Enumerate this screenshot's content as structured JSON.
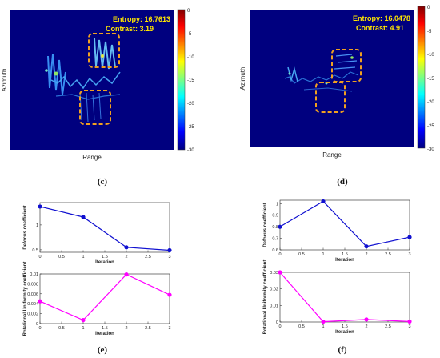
{
  "captions": [
    "(c)",
    "(d)",
    "(e)",
    "(f)"
  ],
  "colors": {
    "sar_bg": "#00007f",
    "box": "#f0a020",
    "defocus_line": "#1010d0",
    "rot_line": "#ff00ff"
  },
  "chart_data": [
    {
      "type": "heatmap",
      "caption": "(c)",
      "xlabel": "Range",
      "ylabel": "Azimuth",
      "entropy_label": "Entropy: 16.7613",
      "contrast_label": "Contrast: 3.19",
      "colorbar": {
        "ticks": [
          "0",
          "-5",
          "-10",
          "-15",
          "-20",
          "-25",
          "-30"
        ],
        "range": [
          -30,
          0
        ]
      }
    },
    {
      "type": "heatmap",
      "caption": "(d)",
      "xlabel": "Range",
      "ylabel": "Azimuth",
      "entropy_label": "Entropy: 16.0478",
      "contrast_label": "Contrast: 4.91",
      "colorbar": {
        "ticks": [
          "0",
          "-5",
          "-10",
          "-15",
          "-20",
          "-25",
          "-30"
        ],
        "range": [
          -30,
          0
        ]
      }
    },
    {
      "type": "line",
      "caption": "(e)",
      "xlabel": "Iteration",
      "ylabel": "Defocus coefficient",
      "x": [
        0,
        1,
        2,
        3
      ],
      "series": [
        {
          "values": [
            1.37,
            1.16,
            0.55,
            0.49
          ]
        }
      ],
      "xlim": [
        0,
        3
      ],
      "ylim": [
        0.45,
        1.45
      ],
      "xticks": [
        "0",
        "0.5",
        "1",
        "1.5",
        "2",
        "2.5",
        "3"
      ],
      "yticks": [
        "0.5",
        "1"
      ],
      "grid": false
    },
    {
      "type": "line",
      "caption": "(e)",
      "xlabel": "Iteration",
      "ylabel": "Rotational Uniformity coefficient",
      "x": [
        0,
        1,
        2,
        3
      ],
      "series": [
        {
          "values": [
            0.0045,
            0.0007,
            0.0099,
            0.0058
          ]
        }
      ],
      "xlim": [
        0,
        3
      ],
      "ylim": [
        0,
        0.01
      ],
      "xticks": [
        "0",
        "0.5",
        "1",
        "1.5",
        "2",
        "2.5",
        "3"
      ],
      "yticks": [
        "0",
        "0.002",
        "0.004",
        "0.006",
        "0.008",
        "0.01"
      ],
      "grid": false
    },
    {
      "type": "line",
      "caption": "(f)",
      "xlabel": "Iteration",
      "ylabel": "Defocus coefficient",
      "x": [
        0,
        1,
        2,
        3
      ],
      "series": [
        {
          "values": [
            0.8,
            1.02,
            0.63,
            0.71
          ]
        }
      ],
      "xlim": [
        0,
        3
      ],
      "ylim": [
        0.6,
        1.03
      ],
      "xticks": [
        "0",
        "0.5",
        "1",
        "1.5",
        "2",
        "2.5",
        "3"
      ],
      "yticks": [
        "0.6",
        "0.7",
        "0.8",
        "0.9",
        "1"
      ],
      "grid": false
    },
    {
      "type": "line",
      "caption": "(f)",
      "xlabel": "Iteration",
      "ylabel": "Rotational Uniformity coefficient",
      "x": [
        0,
        1,
        2,
        3
      ],
      "series": [
        {
          "values": [
            0.03,
            0.0002,
            0.0015,
            0.0003
          ]
        }
      ],
      "xlim": [
        0,
        3
      ],
      "ylim": [
        0,
        0.03
      ],
      "xticks": [
        "0",
        "0.5",
        "1",
        "1.5",
        "2",
        "2.5",
        "3"
      ],
      "yticks": [
        "0",
        "0.01",
        "0.02",
        "0.03"
      ],
      "grid": false
    }
  ]
}
